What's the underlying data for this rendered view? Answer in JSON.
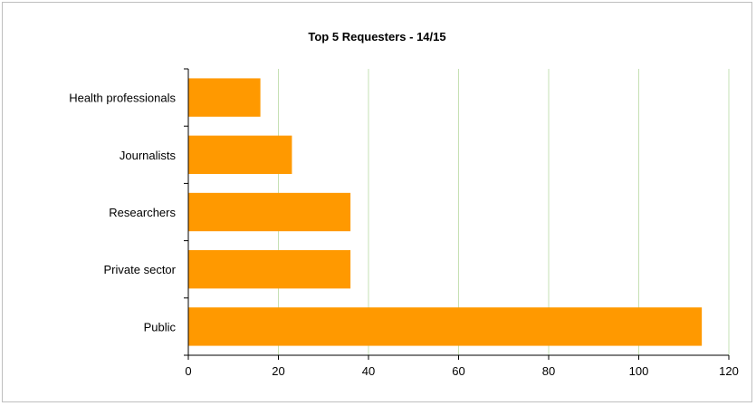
{
  "chart_data": {
    "type": "bar",
    "orientation": "horizontal",
    "title": "Top 5 Requesters - 14/15",
    "categories": [
      "Health professionals",
      "Journalists",
      "Researchers",
      "Private sector",
      "Public"
    ],
    "values": [
      16,
      23,
      36,
      36,
      114
    ],
    "xlim": [
      0,
      120
    ],
    "xticks": [
      0,
      20,
      40,
      60,
      80,
      100,
      120
    ],
    "grid": "vertical",
    "legend": "none",
    "colors": {
      "bar": "#ff9900",
      "grid": "#c6e0b4",
      "axis": "#000000"
    }
  }
}
